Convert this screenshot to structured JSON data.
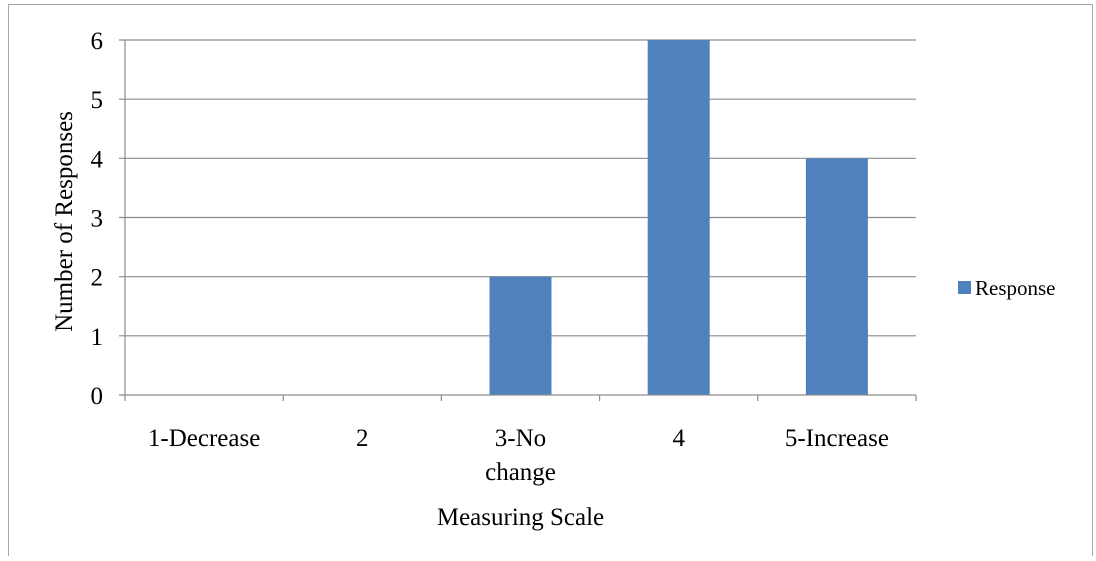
{
  "chart_data": {
    "type": "bar",
    "categories": [
      "1-Decrease",
      "2",
      "3-No change",
      "4",
      "5-Increase"
    ],
    "category_lines": [
      [
        "1-Decrease"
      ],
      [
        "2"
      ],
      [
        "3-No",
        "change"
      ],
      [
        "4"
      ],
      [
        "5-Increase"
      ]
    ],
    "series": [
      {
        "name": "Response",
        "values": [
          0,
          0,
          2,
          6,
          4
        ],
        "color": "#4f81bd"
      }
    ],
    "xlabel": "Measuring Scale",
    "ylabel": "Number of Responses",
    "ylim": [
      0,
      6
    ],
    "yticks": [
      0,
      1,
      2,
      3,
      4,
      5,
      6
    ],
    "grid": true,
    "legend_position": "right"
  },
  "colors": {
    "bar": "#4f81bd",
    "grid": "#8c8c8c",
    "axis": "#8c8c8c",
    "frame": "#a6a6a6"
  }
}
